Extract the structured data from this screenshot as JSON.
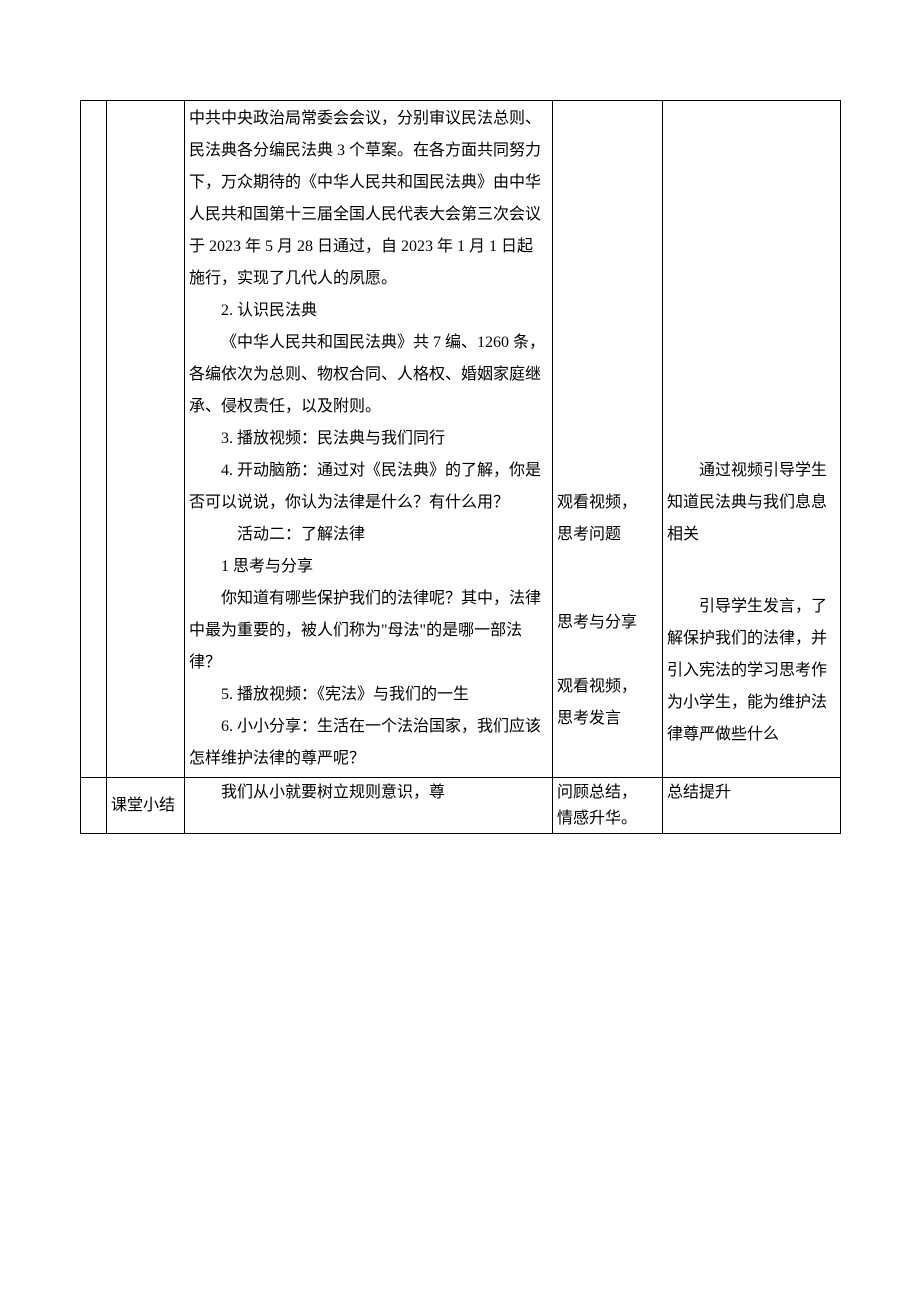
{
  "row1": {
    "col0": "",
    "col1": "",
    "col2": {
      "paragraphs": [
        {
          "text": "中共中央政治局常委会会议，分别审议民法总则、民法典各分编民法典 3 个草案。在各方面共同努力下，万众期待的《中华人民共和国民法典》由中华人民共和国第十三届全国人民代表大会第三次会议于 2023 年 5 月 28 日通过，自 2023 年 1 月 1 日起施行，实现了几代人的夙愿。",
          "indent": false
        },
        {
          "text": "2. 认识民法典",
          "indent": true
        },
        {
          "text": "《中华人民共和国民法典》共 7 编、1260 条，各编依次为总则、物权合同、人格权、婚姻家庭继承、侵权责任，以及附则。",
          "indent": true
        },
        {
          "text": "3. 播放视频：民法典与我们同行",
          "indent": true
        },
        {
          "text": "4. 开动脑筋：通过对《民法典》的了解，你是否可以说说，你认为法律是什么？有什么用？",
          "indent": true
        },
        {
          "text": "活动二：了解法律",
          "indent": true,
          "center": true
        },
        {
          "text": "1 思考与分享",
          "indent": true
        },
        {
          "text": "你知道有哪些保护我们的法律呢？其中，法律中最为重要的，被人们称为\"母法\"的是哪一部法律？",
          "indent": true
        },
        {
          "text": "5. 播放视频：《宪法》与我们的一生",
          "indent": true
        },
        {
          "text": "6. 小小分享：生活在一个法治国家，我们应该怎样维护法律的尊严呢？",
          "indent": true
        }
      ]
    },
    "col3": {
      "g1a": "观看视频，",
      "g1b": "思考问题",
      "g2": "思考与分享",
      "g3a": "观看视频，",
      "g3b": "思考发言"
    },
    "col4": {
      "g1": "通过视频引导学生知道民法典与我们息息相关",
      "g2": "引导学生发言，了解保护我们的法律，并引入宪法的学习思考作为小学生，能为维护法律尊严做些什么"
    }
  },
  "row2": {
    "col0": "",
    "col1": "课堂小结",
    "col2": "我们从小就要树立规则意识，尊",
    "col3a": "问顾总结，",
    "col3b": "情感升华。",
    "col4": "总结提升"
  },
  "style": {
    "text_color": "#000000",
    "border_color": "#000000",
    "background": "#ffffff",
    "body_fontsize": 16,
    "line_height": 2.0
  }
}
